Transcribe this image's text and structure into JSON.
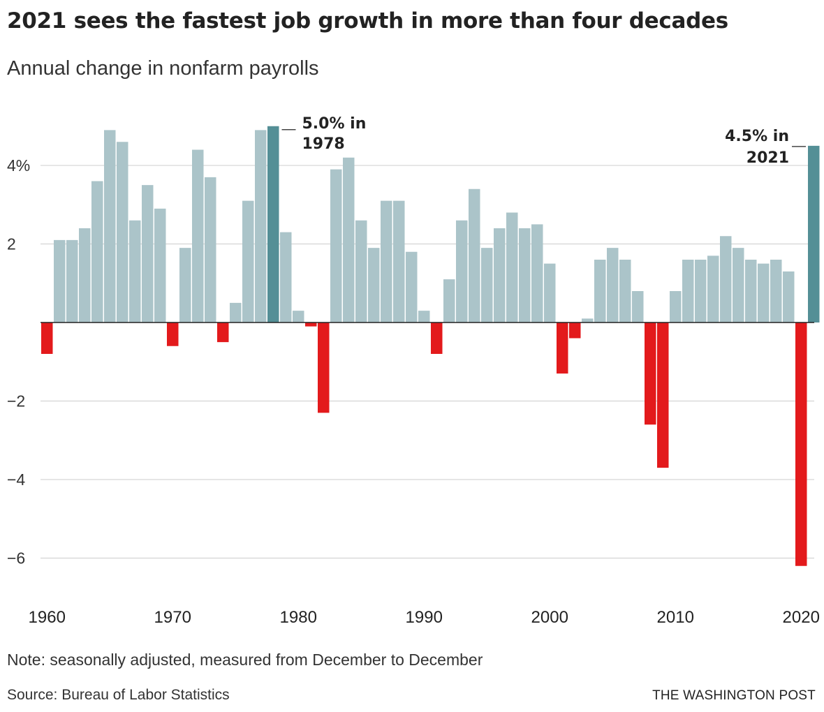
{
  "title": "2021 sees the fastest job growth in more than four decades",
  "subtitle": "Annual change in nonfarm payrolls",
  "note": "Note: seasonally adjusted, measured from December to December",
  "source": "Source: Bureau of Labor Statistics",
  "credit": "THE WASHINGTON POST",
  "colors": {
    "positive": "#abc4c9",
    "negative": "#e31a1c",
    "highlight": "#548f96",
    "grid": "#cccccc",
    "zero_line": "#222222"
  },
  "chart_data": {
    "type": "bar",
    "x": [
      1960,
      1961,
      1962,
      1963,
      1964,
      1965,
      1966,
      1967,
      1968,
      1969,
      1970,
      1971,
      1972,
      1973,
      1974,
      1975,
      1976,
      1977,
      1978,
      1979,
      1980,
      1981,
      1982,
      1983,
      1984,
      1985,
      1986,
      1987,
      1988,
      1989,
      1990,
      1991,
      1992,
      1993,
      1994,
      1995,
      1996,
      1997,
      1998,
      1999,
      2000,
      2001,
      2002,
      2003,
      2004,
      2005,
      2006,
      2007,
      2008,
      2009,
      2010,
      2011,
      2012,
      2013,
      2014,
      2015,
      2016,
      2017,
      2018,
      2019,
      2020,
      2021
    ],
    "values": [
      -0.8,
      2.1,
      2.1,
      2.4,
      3.6,
      4.9,
      4.6,
      2.6,
      3.5,
      2.9,
      -0.6,
      1.9,
      4.4,
      3.7,
      -0.5,
      0.5,
      3.1,
      4.9,
      5.0,
      2.3,
      0.3,
      -0.1,
      -2.3,
      3.9,
      4.2,
      2.6,
      1.9,
      3.1,
      3.1,
      1.8,
      0.3,
      -0.8,
      1.1,
      2.6,
      3.4,
      1.9,
      2.4,
      2.8,
      2.4,
      2.5,
      1.5,
      -1.3,
      -0.4,
      0.1,
      1.6,
      1.9,
      1.6,
      0.8,
      -2.6,
      -3.7,
      0.8,
      1.6,
      1.6,
      1.7,
      2.2,
      1.9,
      1.6,
      1.5,
      1.6,
      1.3,
      -6.2,
      4.5
    ],
    "highlight_years": [
      1978,
      2021
    ],
    "ylim": [
      -6.9,
      5.3
    ],
    "yticks": [
      {
        "value": 4,
        "label": "4%"
      },
      {
        "value": 2,
        "label": "2"
      },
      {
        "value": -2,
        "label": "−2"
      },
      {
        "value": -4,
        "label": "−4"
      },
      {
        "value": -6,
        "label": "−6"
      }
    ],
    "xticks": [
      {
        "value": 1960,
        "label": "1960"
      },
      {
        "value": 1970,
        "label": "1970"
      },
      {
        "value": 1980,
        "label": "1980"
      },
      {
        "value": 1990,
        "label": "1990"
      },
      {
        "value": 2000,
        "label": "2000"
      },
      {
        "value": 2010,
        "label": "2010"
      },
      {
        "value": 2020,
        "label": "2020"
      }
    ],
    "annotations": [
      {
        "year": 1978,
        "lines": [
          "5.0% in",
          "1978"
        ],
        "side": "right"
      },
      {
        "year": 2021,
        "lines": [
          "4.5% in",
          "2021"
        ],
        "side": "left"
      }
    ],
    "xlabel": "",
    "ylabel": "",
    "grid": true
  }
}
